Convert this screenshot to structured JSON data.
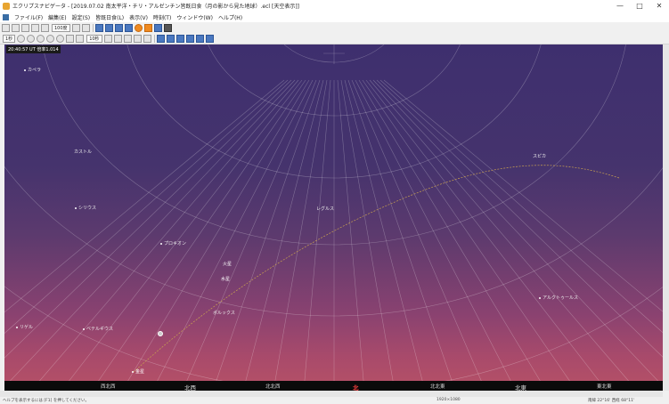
{
  "window": {
    "title": "エクリプスナビゲータ - [2019.07.02 南太平洋・チリ・アルゼンチン皆既日食（月の影から見た地球）.ecl [天空表示]]",
    "buttons": [
      "—",
      "□",
      "✕"
    ]
  },
  "menu": [
    "ファイル(F)",
    "編集(E)",
    "設定(S)",
    "皆既日食(L)",
    "表示(V)",
    "時刻(T)",
    "ウィンドウ(W)",
    "ヘルプ(H)"
  ],
  "toolbar1": {
    "zoom_select": "100度"
  },
  "toolbar2": {
    "speed_select": "1秒",
    "interval_select": "10秒"
  },
  "sky": {
    "time_readout": "20:40:57 UT 倍率1.014"
  },
  "stars": [
    {
      "id": "capella",
      "name": "カペラ"
    },
    {
      "id": "kastor",
      "name": "カストル"
    },
    {
      "id": "sirius",
      "name": "シリウス"
    },
    {
      "id": "procyon",
      "name": "プロキオン"
    },
    {
      "id": "regulus",
      "name": "レグルス"
    },
    {
      "id": "spica",
      "name": "スピカ"
    },
    {
      "id": "pollux",
      "name": "ポルックス"
    },
    {
      "id": "arcturus",
      "name": "アルクトゥールス"
    },
    {
      "id": "rigel",
      "name": "リゲル"
    },
    {
      "id": "betelgeuse",
      "name": "ベテルギウス"
    }
  ],
  "planets": [
    {
      "id": "mars",
      "name": "火星"
    },
    {
      "id": "mercury",
      "name": "水星"
    },
    {
      "id": "venus",
      "name": "金星"
    }
  ],
  "directions": {
    "wsw": "西北西",
    "nw": "北西",
    "nnw": "北北西",
    "n": "北",
    "nne": "北北東",
    "ne": "北東",
    "ene": "東北東"
  },
  "statusbar": {
    "left": "ヘルプを表示するには [F1] を押してください。",
    "middle": "1920×1080",
    "right": "南緯 22°16' 西経 68°11'"
  },
  "colors": {
    "sky_top": "#3e2f6e",
    "sky_horizon": "#b65166",
    "ecliptic": "#c8a050",
    "north_mark": "#ff4040"
  }
}
